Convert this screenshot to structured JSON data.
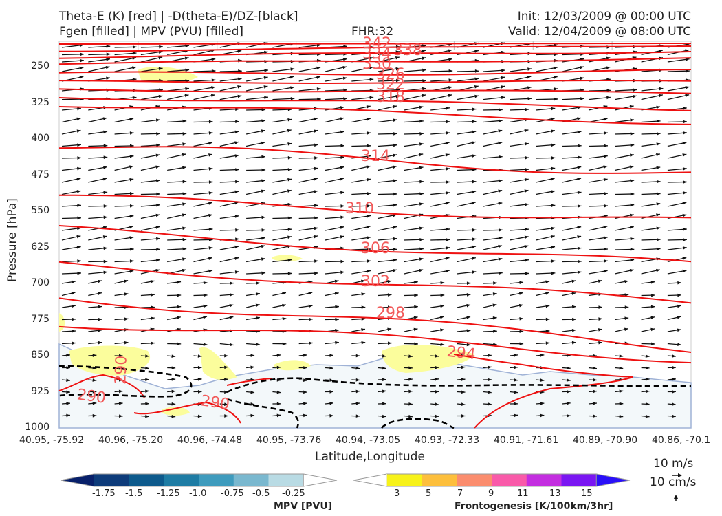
{
  "header": {
    "title_left_1": "Theta-E (K) [red] | -D(theta-E)/DZ-[black]",
    "title_left_2": "Fgen [filled] | MPV (PVU) [filled]",
    "fhr": "FHR:32",
    "init": "Init: 12/03/2009 @ 00:00 UTC",
    "valid": "Valid: 12/04/2009 @ 08:00 UTC"
  },
  "chart_data": {
    "type": "cross-section",
    "xlabel": "Latitude,Longitude",
    "ylabel": "Pressure [hPa]",
    "x_ticks": [
      "40.95, -75.92",
      "40.96, -75.20",
      "40.96, -74.48",
      "40.95, -73.76",
      "40.94, -73.05",
      "40.93, -72.33",
      "40.91, -71.61",
      "40.89, -70.90",
      "40.86, -70.1"
    ],
    "y_ticks": [
      250,
      325,
      400,
      475,
      550,
      625,
      700,
      775,
      850,
      925,
      1000
    ],
    "ylim": [
      1000,
      210
    ],
    "theta_e_labels": [
      "342",
      "338",
      "334",
      "330",
      "326",
      "322",
      "318",
      "314",
      "310",
      "306",
      "302",
      "298",
      "294",
      "290",
      "290",
      "290"
    ],
    "theta_e_colour": "#ee1111",
    "wind_reference": [
      "10 m/s",
      "10 cm/s"
    ],
    "mpv_colorbar": {
      "label": "MPV [PVU]",
      "ticks": [
        "-1.75",
        "-1.5",
        "-1.25",
        "-1.0",
        "-0.75",
        "-0.5",
        "-0.25"
      ],
      "colors": [
        "#08206a",
        "#0d3b7a",
        "#0d5a8c",
        "#1e7ca4",
        "#3e9bbd",
        "#7ab8cf",
        "#b9dbe4",
        "#ffffff"
      ]
    },
    "fgen_colorbar": {
      "label": "Frontogenesis [K/100km/3hr]",
      "ticks": [
        "3",
        "5",
        "7",
        "9",
        "11",
        "13",
        "15"
      ],
      "colors": [
        "#ffffff",
        "#f7f21a",
        "#fdbf3c",
        "#fb8d6e",
        "#f95aa9",
        "#c32ee0",
        "#7a16f2",
        "#2a10f8"
      ]
    }
  }
}
